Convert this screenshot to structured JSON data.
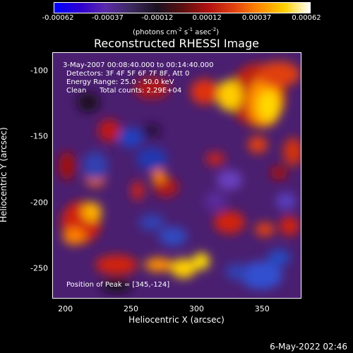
{
  "colorbar": {
    "ticks": [
      "-0.00062",
      "-0.00037",
      "-0.00012",
      "0.00012",
      "0.00037",
      "0.00062"
    ],
    "units_parts": [
      "(photons cm",
      "-2",
      " s",
      "-1",
      " asec",
      "-2",
      ")"
    ],
    "gradient": [
      "#0000ff",
      "#2e00d0",
      "#5a2aa8",
      "#3c2a60",
      "#1a1020",
      "#5a1010",
      "#b01010",
      "#e04010",
      "#ff8800",
      "#ffd000",
      "#ffffff"
    ]
  },
  "title": "Reconstructed RHESSI Image",
  "annotations": {
    "time": "3-May-2007 00:08:40.000 to 00:14:40.000",
    "detectors": "Detectors: 3F 4F 5F 6F 7F 8F, Att 0",
    "energy": "Energy Range: 25.0 - 50.0 keV",
    "clean": "Clean",
    "counts": "Total counts: 2.29E+04",
    "peak": "Position of Peak = [345,-124]"
  },
  "axes": {
    "xlabel": "Heliocentric X (arcsec)",
    "ylabel": "Heliocentric Y (arcsec)",
    "xticks": [
      "200",
      "250",
      "300",
      "350"
    ],
    "yticks": [
      "-100",
      "-150",
      "-200",
      "-250"
    ],
    "xrange": [
      190,
      380
    ],
    "yrange": [
      -273,
      -86
    ]
  },
  "footer_date": "6-May-2022 02:46"
}
